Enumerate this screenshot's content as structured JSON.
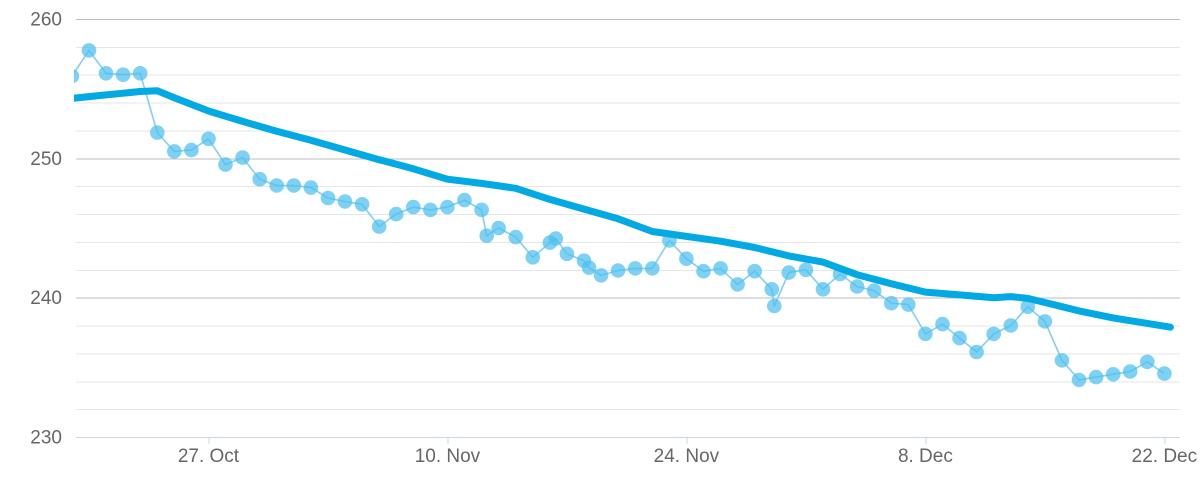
{
  "chart_data": {
    "type": "line",
    "title": "",
    "legend": "none",
    "grid": "horizontal, minor every 2 units, major every 10",
    "x_axis": {
      "tick_labels": [
        "27. Oct",
        "10. Nov",
        "24. Nov",
        "8. Dec",
        "22. Dec"
      ],
      "tick_positions_days": [
        8,
        22,
        36,
        50,
        64
      ],
      "range_days": [
        0.24,
        64.92
      ]
    },
    "y_axis": {
      "tick_labels": [
        "230",
        "240",
        "250",
        "260"
      ],
      "ticks": [
        230,
        240,
        250,
        260
      ],
      "minor_step": 2,
      "range": [
        230,
        260
      ]
    },
    "series": [
      {
        "name": "daily-values",
        "style": "thin line with round markers",
        "marker_color": "#4cbfef",
        "marker_opacity": 0.72,
        "line_color": "#7fd1f3",
        "points": [
          [
            0,
            255.9
          ],
          [
            1,
            257.75
          ],
          [
            2,
            256.1
          ],
          [
            3,
            256.0
          ],
          [
            4,
            256.1
          ],
          [
            5,
            251.85
          ],
          [
            6,
            250.5
          ],
          [
            7,
            250.6
          ],
          [
            8,
            251.4
          ],
          [
            9,
            249.55
          ],
          [
            10,
            250.05
          ],
          [
            11,
            248.5
          ],
          [
            12,
            248.05
          ],
          [
            13,
            248.05
          ],
          [
            14,
            247.9
          ],
          [
            15,
            247.15
          ],
          [
            16,
            246.9
          ],
          [
            17,
            246.7
          ],
          [
            18,
            245.1
          ],
          [
            19,
            246.0
          ],
          [
            20,
            246.5
          ],
          [
            21,
            246.3
          ],
          [
            22,
            246.5
          ],
          [
            23,
            247.0
          ],
          [
            24,
            246.3
          ],
          [
            24.3,
            244.45
          ],
          [
            25,
            245.0
          ],
          [
            26,
            244.35
          ],
          [
            27,
            242.9
          ],
          [
            28,
            243.95
          ],
          [
            28.35,
            244.25
          ],
          [
            29,
            243.15
          ],
          [
            30,
            242.65
          ],
          [
            30.3,
            242.15
          ],
          [
            31,
            241.6
          ],
          [
            32,
            241.95
          ],
          [
            33,
            242.1
          ],
          [
            34,
            242.1
          ],
          [
            35,
            244.1
          ],
          [
            36,
            242.8
          ],
          [
            37,
            241.9
          ],
          [
            38,
            242.1
          ],
          [
            39,
            240.95
          ],
          [
            40,
            241.9
          ],
          [
            41,
            240.6
          ],
          [
            41.15,
            239.4
          ],
          [
            42,
            241.8
          ],
          [
            43,
            242.0
          ],
          [
            44,
            240.6
          ],
          [
            45,
            241.7
          ],
          [
            46,
            240.8
          ],
          [
            47,
            240.5
          ],
          [
            48,
            239.6
          ],
          [
            49,
            239.5
          ],
          [
            50,
            237.4
          ],
          [
            51,
            238.1
          ],
          [
            52,
            237.1
          ],
          [
            53,
            236.1
          ],
          [
            54,
            237.4
          ],
          [
            55,
            238.0
          ],
          [
            56,
            239.35
          ],
          [
            57,
            238.3
          ],
          [
            58,
            235.5
          ],
          [
            59,
            234.1
          ],
          [
            60,
            234.3
          ],
          [
            61,
            234.5
          ],
          [
            62,
            234.7
          ],
          [
            63,
            235.4
          ],
          [
            64,
            234.55
          ]
        ]
      },
      {
        "name": "trend",
        "style": "thick smooth line",
        "line_color": "#02a9e3",
        "line_width": 7,
        "points": [
          [
            0,
            254.3
          ],
          [
            2,
            254.55
          ],
          [
            4,
            254.8
          ],
          [
            5,
            254.85
          ],
          [
            6,
            254.35
          ],
          [
            8,
            253.4
          ],
          [
            10,
            252.65
          ],
          [
            12,
            251.95
          ],
          [
            14,
            251.3
          ],
          [
            16,
            250.6
          ],
          [
            18,
            249.9
          ],
          [
            20,
            249.25
          ],
          [
            22,
            248.5
          ],
          [
            24,
            248.2
          ],
          [
            26,
            247.85
          ],
          [
            28,
            247.05
          ],
          [
            30,
            246.36
          ],
          [
            32,
            245.66
          ],
          [
            34,
            244.75
          ],
          [
            36,
            244.4
          ],
          [
            38,
            244.05
          ],
          [
            40,
            243.6
          ],
          [
            42,
            243.0
          ],
          [
            44,
            242.55
          ],
          [
            46,
            241.65
          ],
          [
            48,
            241.0
          ],
          [
            50,
            240.4
          ],
          [
            52,
            240.2
          ],
          [
            54,
            240.0
          ],
          [
            55,
            240.08
          ],
          [
            56,
            239.95
          ],
          [
            57,
            239.65
          ],
          [
            58,
            239.35
          ],
          [
            59,
            239.05
          ],
          [
            60,
            238.8
          ],
          [
            61,
            238.55
          ],
          [
            62,
            238.35
          ],
          [
            63,
            238.15
          ],
          [
            64,
            237.95
          ],
          [
            64.35,
            237.88
          ]
        ]
      }
    ]
  },
  "layout_colors": {
    "background": "#ffffff",
    "label_text": "#666666",
    "axis_line": "#ccd6eb",
    "tick_mark": "#ccd6eb",
    "grid_minor": "#e6e6e6",
    "grid_major": "#bdbdbd"
  }
}
